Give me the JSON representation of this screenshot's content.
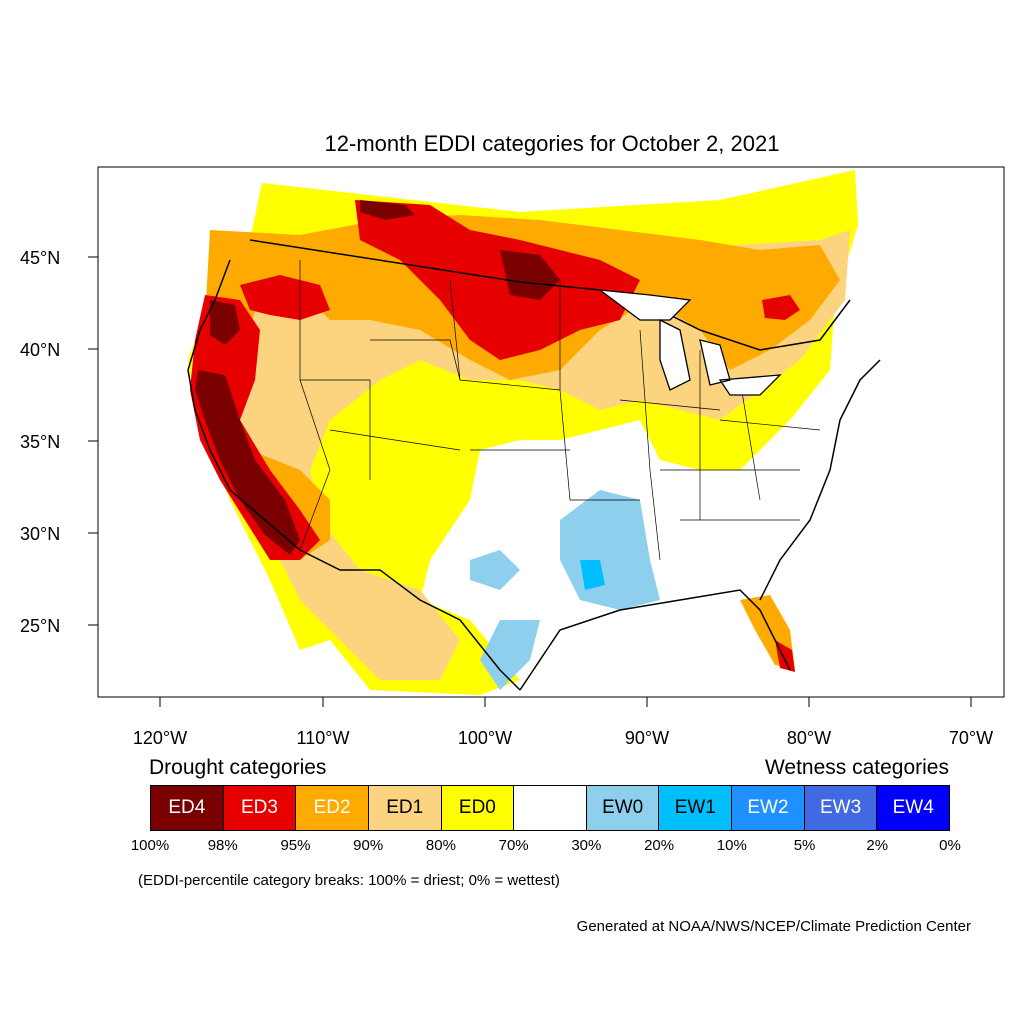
{
  "title": "12-month EDDI categories for October 2, 2021",
  "latitude_labels": [
    "45°N",
    "40°N",
    "35°N",
    "30°N",
    "25°N"
  ],
  "longitude_labels": [
    "120°W",
    "110°W",
    "100°W",
    "90°W",
    "80°W",
    "70°W"
  ],
  "legend": {
    "drought_heading": "Drought categories",
    "wetness_heading": "Wetness categories",
    "categories": [
      {
        "label": "ED4",
        "color": "#7a0000",
        "text_color": "#ffffff"
      },
      {
        "label": "ED3",
        "color": "#e60000",
        "text_color": "#ffffff"
      },
      {
        "label": "ED2",
        "color": "#ffaa00",
        "text_color": "#ffffff"
      },
      {
        "label": "ED1",
        "color": "#fcd37f",
        "text_color": "#000000"
      },
      {
        "label": "ED0",
        "color": "#ffff00",
        "text_color": "#000000"
      },
      {
        "label": "",
        "color": "#ffffff",
        "text_color": "#000000"
      },
      {
        "label": "EW0",
        "color": "#8ecfee",
        "text_color": "#000000"
      },
      {
        "label": "EW1",
        "color": "#00bfff",
        "text_color": "#000000"
      },
      {
        "label": "EW2",
        "color": "#1e90ff",
        "text_color": "#ffffff"
      },
      {
        "label": "EW3",
        "color": "#4169e1",
        "text_color": "#ffffff"
      },
      {
        "label": "EW4",
        "color": "#0000ff",
        "text_color": "#ffffff"
      }
    ],
    "breaks": [
      "100%",
      "98%",
      "95%",
      "90%",
      "80%",
      "70%",
      "30%",
      "20%",
      "10%",
      "5%",
      "2%",
      "0%"
    ]
  },
  "note": "(EDDI-percentile category breaks: 100% = driest; 0% = wettest)",
  "credit": "Generated at NOAA/NWS/NCEP/Climate Prediction Center"
}
